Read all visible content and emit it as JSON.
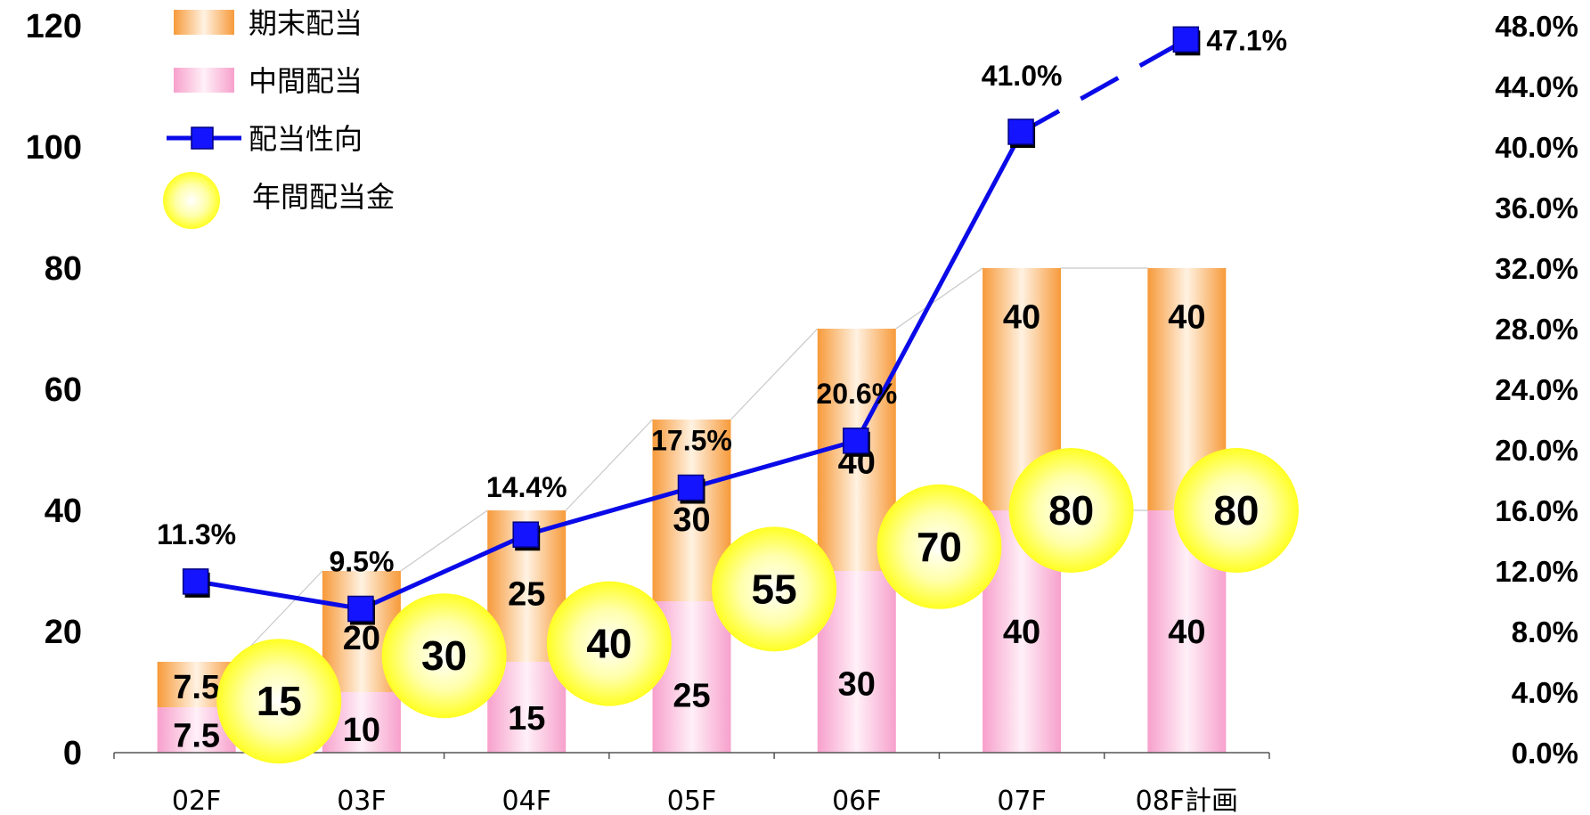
{
  "chart_data": {
    "type": "bar",
    "stacked": true,
    "categories": [
      "02F",
      "03F",
      "04F",
      "05F",
      "06F",
      "07F",
      "08F計画"
    ],
    "series": [
      {
        "name": "中間配当",
        "kind": "bar",
        "axis": "left",
        "values": [
          7.5,
          10,
          15,
          25,
          30,
          40,
          40
        ],
        "labels": [
          "7.5",
          "10",
          "15",
          "25",
          "30",
          "40",
          "40"
        ]
      },
      {
        "name": "期末配当",
        "kind": "bar",
        "axis": "left",
        "values": [
          7.5,
          20,
          25,
          30,
          40,
          40,
          40
        ],
        "labels": [
          "7.5",
          "20",
          "25",
          "30",
          "40",
          "40",
          "40"
        ]
      },
      {
        "name": "配当性向",
        "kind": "line",
        "axis": "right",
        "values": [
          11.3,
          9.5,
          14.4,
          17.5,
          20.6,
          41.0,
          47.1
        ],
        "labels": [
          "11.3%",
          "9.5%",
          "14.4%",
          "17.5%",
          "20.6%",
          "41.0%",
          "47.1%"
        ],
        "dashed_last_segment": true
      },
      {
        "name": "年間配当金",
        "kind": "bubble",
        "axis": "left",
        "values": [
          15,
          30,
          40,
          55,
          70,
          80,
          80
        ],
        "labels": [
          "15",
          "30",
          "40",
          "55",
          "70",
          "80",
          "80"
        ]
      }
    ],
    "left_axis": {
      "min": 0,
      "max": 120,
      "ticks": [
        "0",
        "20",
        "40",
        "60",
        "80",
        "100",
        "120"
      ]
    },
    "right_axis": {
      "min": 0,
      "max": 48,
      "ticks": [
        "0.0%",
        "4.0%",
        "8.0%",
        "12.0%",
        "16.0%",
        "20.0%",
        "24.0%",
        "28.0%",
        "32.0%",
        "36.0%",
        "40.0%",
        "44.0%",
        "48.0%"
      ]
    },
    "legend": {
      "placement": "top-left",
      "items": [
        {
          "name": "期末配当",
          "symbol": "bar-orange"
        },
        {
          "name": "中間配当",
          "symbol": "bar-pink"
        },
        {
          "name": "配当性向",
          "symbol": "line-square-blue"
        },
        {
          "name": "年間配当金",
          "symbol": "yellow-circle"
        }
      ]
    },
    "grid": false,
    "colors": {
      "interim": "#f9a6d0",
      "final": "#f7a04a",
      "line": "#0000ee",
      "bubble": "#ffff33"
    }
  }
}
